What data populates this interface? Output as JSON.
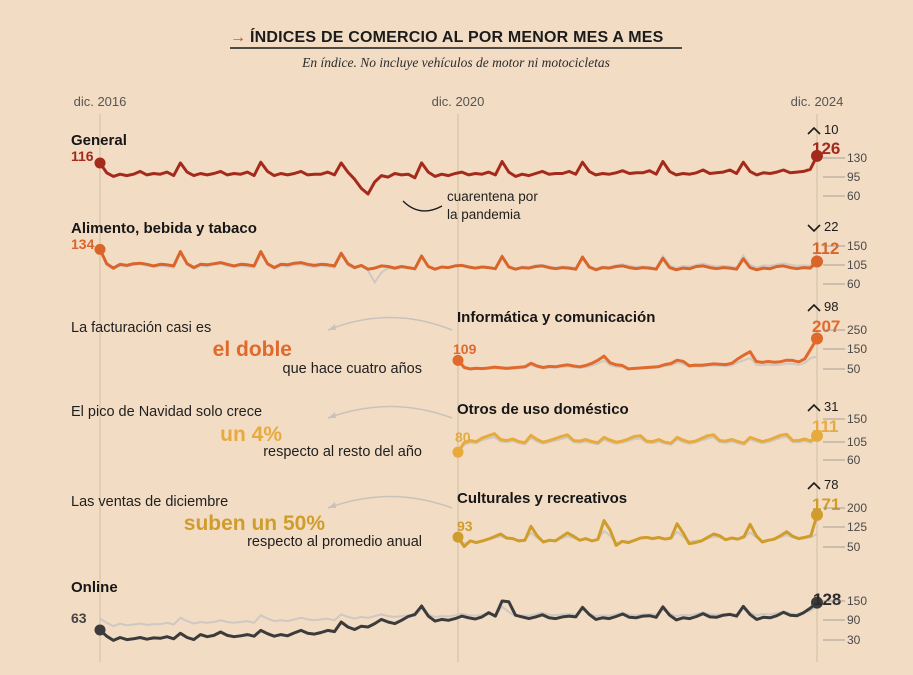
{
  "header": {
    "arrow": "→",
    "title": "ÍNDICES DE COMERCIO AL POR MENOR MES A MES",
    "subtitle": "En índice. No incluye vehículos de motor ni motocicletas"
  },
  "colors": {
    "background": "#f3dcc4",
    "general": "#a42a1c",
    "alimento": "#d9652b",
    "informatica": "#e0692c",
    "domestico": "#e7aa3c",
    "culturales": "#cf9d2c",
    "online": "#3b3b3b",
    "reference": "#cfc8c2"
  },
  "notes": [
    {
      "line1": "La facturación casi es",
      "highlight": "el doble",
      "line3": "que hace cuatro años",
      "color": "#e0692c"
    },
    {
      "line1": "El pico de Navidad solo crece",
      "highlight": "un 4%",
      "line3": "respecto al resto del año",
      "color": "#e7aa3c"
    },
    {
      "line1": "Las ventas de diciembre",
      "highlight": "suben un 50%",
      "line3": "respecto al promedio anual",
      "color": "#cf9d2c"
    }
  ],
  "chart_data": {
    "type": "line",
    "x_axis_labels": [
      "dic. 2016",
      "dic. 2020",
      "dic. 2024"
    ],
    "annotation": {
      "line1": "cuarentena por",
      "line2": "la pandemia"
    },
    "panels": [
      {
        "name": "General",
        "label_style": "bold",
        "start_value": "116",
        "end_value": "126",
        "change_dir": "up",
        "change": "10",
        "ticks": [
          "130",
          "95",
          "60"
        ],
        "ylim": [
          55,
          140
        ],
        "start": "dic. 2016",
        "values": [
          116,
          102,
          97,
          100,
          98,
          100,
          104,
          99,
          101,
          100,
          103,
          98,
          116,
          103,
          98,
          101,
          99,
          101,
          104,
          99,
          101,
          100,
          103,
          98,
          117,
          104,
          98,
          101,
          99,
          101,
          104,
          99,
          100,
          100,
          103,
          99,
          116,
          103,
          93,
          80,
          72,
          89,
          98,
          96,
          101,
          99,
          100,
          95,
          116,
          103,
          97,
          100,
          98,
          101,
          103,
          99,
          101,
          100,
          103,
          99,
          118,
          103,
          97,
          100,
          98,
          101,
          104,
          100,
          101,
          101,
          104,
          100,
          117,
          104,
          99,
          101,
          100,
          102,
          105,
          101,
          102,
          102,
          105,
          100,
          118,
          104,
          99,
          101,
          100,
          102,
          106,
          101,
          102,
          103,
          106,
          101,
          117,
          104,
          99,
          102,
          101,
          103,
          106,
          102,
          103,
          104,
          107,
          126
        ]
      },
      {
        "name": "Alimento, bebida y tabaco",
        "label_style": "bold",
        "start_value": "134",
        "end_value": "112",
        "change_dir": "down",
        "change": "22",
        "ticks": [
          "150",
          "105",
          "60"
        ],
        "ylim": [
          55,
          160
        ],
        "start": "dic. 2016",
        "values": [
          134,
          108,
          100,
          107,
          105,
          108,
          109,
          107,
          104,
          107,
          106,
          104,
          130,
          108,
          101,
          107,
          106,
          108,
          110,
          107,
          104,
          107,
          106,
          104,
          130,
          108,
          101,
          107,
          106,
          109,
          110,
          107,
          105,
          107,
          106,
          104,
          127,
          108,
          101,
          105,
          98,
          100,
          104,
          103,
          100,
          103,
          101,
          99,
          122,
          103,
          98,
          102,
          101,
          104,
          105,
          102,
          100,
          102,
          101,
          99,
          121,
          102,
          98,
          101,
          100,
          103,
          104,
          101,
          99,
          101,
          100,
          98,
          120,
          102,
          97,
          101,
          100,
          103,
          104,
          101,
          99,
          101,
          100,
          98,
          118,
          101,
          97,
          100,
          99,
          103,
          104,
          101,
          99,
          101,
          100,
          98,
          117,
          101,
          97,
          100,
          99,
          103,
          104,
          101,
          99,
          101,
          100,
          112
        ],
        "reference": [
          134,
          106,
          98,
          104,
          103,
          106,
          107,
          104,
          102,
          104,
          103,
          101,
          128,
          106,
          99,
          104,
          103,
          106,
          108,
          104,
          102,
          104,
          103,
          101,
          128,
          106,
          99,
          104,
          103,
          106,
          107,
          104,
          102,
          104,
          103,
          101,
          125,
          105,
          99,
          104,
          96,
          74,
          92,
          100,
          98,
          101,
          100,
          97,
          122,
          104,
          98,
          102,
          101,
          105,
          106,
          103,
          101,
          103,
          102,
          99,
          123,
          104,
          99,
          103,
          102,
          105,
          106,
          103,
          101,
          103,
          102,
          100,
          121,
          104,
          99,
          103,
          102,
          105,
          107,
          104,
          102,
          103,
          102,
          100,
          122,
          105,
          100,
          104,
          103,
          106,
          108,
          105,
          103,
          104,
          103,
          101,
          123,
          106,
          101,
          105,
          104,
          107,
          109,
          106,
          104,
          105,
          104,
          126
        ]
      },
      {
        "name": "Informática y comunicación",
        "label_style": "bold",
        "start_value": "109",
        "end_value": "207",
        "change_dir": "up",
        "change": "98",
        "ticks": [
          "250",
          "150",
          "50"
        ],
        "ylim": [
          30,
          290
        ],
        "start": "dic. 2020",
        "values": [
          109,
          78,
          71,
          74,
          72,
          75,
          79,
          76,
          73,
          76,
          78,
          80,
          96,
          84,
          77,
          82,
          80,
          85,
          89,
          84,
          80,
          86,
          96,
          110,
          128,
          98,
          89,
          86,
          71,
          73,
          75,
          77,
          79,
          81,
          90,
          95,
          110,
          105,
          85,
          88,
          87,
          90,
          93,
          92,
          90,
          96,
          116,
          133,
          148,
          104,
          100,
          104,
          101,
          103,
          110,
          109,
          102,
          116,
          161,
          207
        ],
        "reference": [
          109,
          73,
          68,
          71,
          70,
          72,
          74,
          72,
          70,
          72,
          74,
          76,
          88,
          78,
          73,
          77,
          76,
          79,
          82,
          78,
          75,
          79,
          85,
          96,
          108,
          88,
          80,
          78,
          70,
          71,
          73,
          74,
          76,
          78,
          84,
          88,
          98,
          94,
          80,
          82,
          81,
          84,
          86,
          85,
          83,
          87,
          100,
          110,
          120,
          90,
          87,
          90,
          88,
          90,
          95,
          94,
          89,
          98,
          120,
          126
        ]
      },
      {
        "name": "Otros de uso doméstico",
        "label_style": "bold",
        "start_value": "80",
        "end_value": "111",
        "change_dir": "up",
        "change": "31",
        "ticks": [
          "150",
          "105",
          "60"
        ],
        "ylim": [
          50,
          160
        ],
        "start": "dic. 2020",
        "values": [
          80,
          98,
          102,
          100,
          107,
          111,
          115,
          104,
          102,
          105,
          100,
          98,
          112,
          104,
          99,
          102,
          106,
          110,
          113,
          102,
          101,
          104,
          100,
          98,
          108,
          103,
          99,
          101,
          105,
          110,
          111,
          101,
          100,
          104,
          99,
          97,
          108,
          103,
          99,
          101,
          106,
          111,
          113,
          102,
          101,
          104,
          100,
          97,
          108,
          104,
          100,
          103,
          107,
          112,
          114,
          102,
          102,
          105,
          101,
          111
        ],
        "reference": [
          80,
          94,
          98,
          97,
          103,
          106,
          109,
          100,
          99,
          101,
          97,
          95,
          107,
          100,
          96,
          99,
          102,
          105,
          108,
          99,
          98,
          100,
          97,
          95,
          104,
          99,
          96,
          98,
          101,
          105,
          106,
          98,
          97,
          100,
          96,
          94,
          104,
          99,
          96,
          98,
          102,
          106,
          108,
          99,
          98,
          100,
          97,
          94,
          104,
          100,
          97,
          99,
          103,
          107,
          109,
          99,
          99,
          101,
          98,
          106
        ]
      },
      {
        "name": "Culturales y recreativos",
        "label_style": "bold",
        "start_value": "93",
        "end_value": "171",
        "change_dir": "up",
        "change": "78",
        "ticks": [
          "200",
          "125",
          "50"
        ],
        "ylim": [
          20,
          230
        ],
        "start": "dic. 2020",
        "values": [
          93,
          60,
          80,
          74,
          80,
          86,
          95,
          104,
          90,
          88,
          80,
          82,
          131,
          98,
          76,
          82,
          80,
          94,
          108,
          96,
          82,
          88,
          80,
          85,
          151,
          118,
          64,
          78,
          74,
          82,
          90,
          92,
          88,
          92,
          86,
          90,
          140,
          108,
          70,
          74,
          80,
          92,
          104,
          98,
          84,
          90,
          86,
          95,
          138,
          98,
          76,
          82,
          86,
          98,
          112,
          96,
          88,
          92,
          98,
          171
        ],
        "reference": [
          93,
          70,
          78,
          76,
          79,
          84,
          90,
          96,
          88,
          86,
          82,
          84,
          108,
          90,
          78,
          82,
          81,
          88,
          96,
          90,
          82,
          86,
          82,
          84,
          115,
          98,
          72,
          80,
          78,
          83,
          88,
          90,
          86,
          89,
          85,
          88,
          112,
          95,
          77,
          80,
          82,
          88,
          95,
          92,
          84,
          88,
          85,
          90,
          110,
          92,
          80,
          84,
          86,
          92,
          100,
          92,
          86,
          90,
          92,
          104
        ]
      },
      {
        "name": "Online",
        "label_style": "bold",
        "start_value": "63",
        "end_value": "128",
        "change_dir": "",
        "change": "",
        "ticks": [
          "150",
          "90",
          "30"
        ],
        "ylim": [
          20,
          170
        ],
        "start": "dic. 2016",
        "values": [
          63,
          48,
          38,
          45,
          40,
          42,
          45,
          41,
          44,
          43,
          47,
          42,
          55,
          45,
          40,
          52,
          47,
          50,
          58,
          50,
          47,
          49,
          52,
          48,
          62,
          54,
          48,
          52,
          49,
          56,
          62,
          55,
          53,
          57,
          62,
          59,
          82,
          70,
          64,
          72,
          70,
          78,
          88,
          82,
          78,
          86,
          95,
          100,
          120,
          96,
          84,
          88,
          86,
          90,
          96,
          92,
          89,
          94,
          104,
          96,
          132,
          130,
          98,
          94,
          90,
          94,
          99,
          92,
          90,
          94,
          96,
          94,
          117,
          100,
          88,
          92,
          90,
          95,
          101,
          93,
          92,
          96,
          97,
          93,
          118,
          98,
          87,
          92,
          90,
          95,
          102,
          94,
          93,
          98,
          100,
          96,
          119,
          100,
          88,
          93,
          92,
          97,
          105,
          98,
          97,
          104,
          115,
          128
        ],
        "reference": [
          90,
          80,
          72,
          78,
          74,
          76,
          78,
          75,
          77,
          77,
          80,
          76,
          92,
          84,
          78,
          82,
          80,
          82,
          86,
          82,
          80,
          82,
          84,
          80,
          98,
          90,
          84,
          86,
          84,
          88,
          92,
          88,
          86,
          88,
          90,
          86,
          100,
          94,
          90,
          94,
          92,
          96,
          100,
          96,
          94,
          96,
          98,
          96,
          114,
          100,
          94,
          96,
          95,
          98,
          102,
          98,
          97,
          99,
          101,
          98,
          118,
          106,
          96,
          98,
          97,
          100,
          104,
          99,
          98,
          100,
          101,
          99,
          112,
          102,
          96,
          98,
          97,
          100,
          104,
          99,
          98,
          100,
          101,
          99,
          112,
          102,
          96,
          99,
          98,
          101,
          105,
          100,
          99,
          101,
          102,
          100,
          114,
          104,
          98,
          101,
          100,
          103,
          107,
          102,
          101,
          104,
          108,
          120
        ]
      }
    ]
  }
}
